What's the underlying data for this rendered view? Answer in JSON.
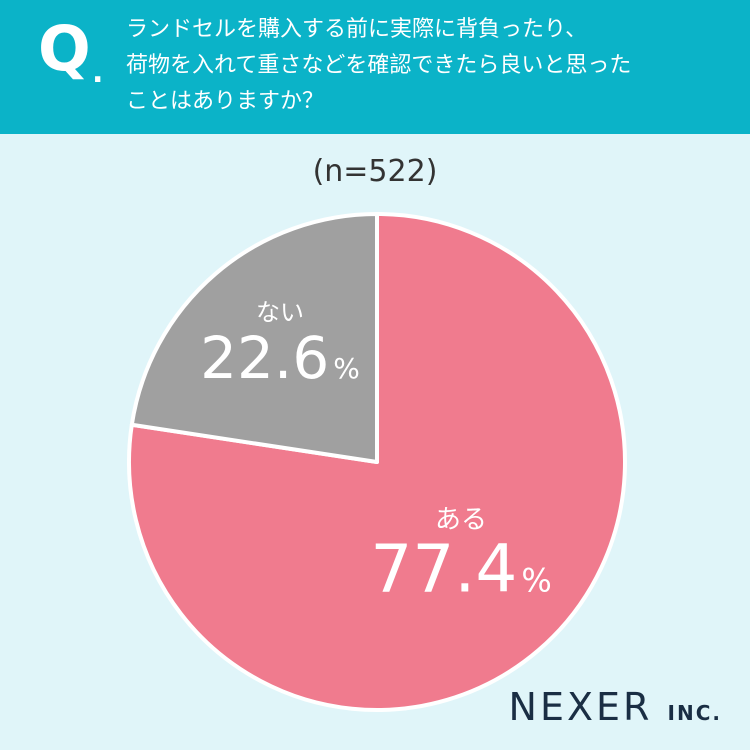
{
  "header": {
    "q_mark": "Q",
    "q_dot": ".",
    "question": "ランドセルを購入する前に実際に背負ったり、\n荷物を入れて重さなどを確認できたら良いと思った\nことはありますか？"
  },
  "sample_size": "(n=522)",
  "brand": {
    "name": "NEXER",
    "suffix": "INC."
  },
  "colors": {
    "header_bg": "#0bb3c8",
    "background": "#e0f5f9",
    "slice_yes": "#f07b8e",
    "slice_no": "#a0a0a0"
  },
  "chart_data": {
    "type": "pie",
    "slices": [
      {
        "label": "ある",
        "value": 77.4,
        "value_text": "77.4",
        "unit": "%"
      },
      {
        "label": "ない",
        "value": 22.6,
        "value_text": "22.6",
        "unit": "%"
      }
    ]
  }
}
